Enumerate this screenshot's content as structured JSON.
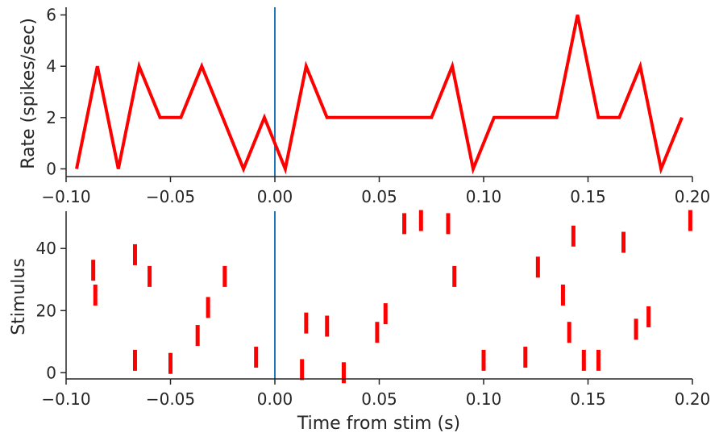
{
  "chart_data": [
    {
      "type": "line",
      "ylabel": "Rate (spikes/sec)",
      "xlim": [
        -0.1,
        0.2
      ],
      "ylim": [
        -0.3,
        6.3
      ],
      "xticks": [
        "−0.10",
        "−0.05",
        "0.00",
        "0.05",
        "0.10",
        "0.15",
        "0.20"
      ],
      "xtick_values": [
        -0.1,
        -0.05,
        0.0,
        0.05,
        0.1,
        0.15,
        0.2
      ],
      "yticks": [
        "0",
        "2",
        "4",
        "6"
      ],
      "ytick_values": [
        0,
        2,
        4,
        6
      ],
      "line_color": "#ff0000",
      "stim_line_color": "#1f77b4",
      "stim_time": 0.0,
      "series": [
        {
          "name": "rate",
          "x": [
            -0.095,
            -0.085,
            -0.075,
            -0.065,
            -0.055,
            -0.045,
            -0.035,
            -0.025,
            -0.015,
            -0.005,
            0.005,
            0.015,
            0.025,
            0.035,
            0.045,
            0.055,
            0.065,
            0.075,
            0.085,
            0.095,
            0.105,
            0.115,
            0.125,
            0.135,
            0.145,
            0.155,
            0.165,
            0.175,
            0.185,
            0.195
          ],
          "y": [
            0,
            4,
            0,
            4,
            2,
            2,
            4,
            2,
            0,
            2,
            0,
            4,
            2,
            2,
            2,
            2,
            2,
            2,
            4,
            0,
            2,
            2,
            2,
            2,
            6,
            2,
            2,
            4,
            0,
            2
          ]
        }
      ]
    },
    {
      "type": "scatter",
      "xlabel": "Time from stim (s)",
      "ylabel": "Stimulus",
      "xlim": [
        -0.1,
        0.2
      ],
      "ylim": [
        -2,
        52
      ],
      "xticks": [
        "−0.10",
        "−0.05",
        "0.00",
        "0.05",
        "0.10",
        "0.15",
        "0.20"
      ],
      "xtick_values": [
        -0.1,
        -0.05,
        0.0,
        0.05,
        0.1,
        0.15,
        0.2
      ],
      "yticks": [
        "0",
        "20",
        "40"
      ],
      "ytick_values": [
        0,
        20,
        40
      ],
      "marker": "|",
      "marker_color": "#ff0000",
      "stim_line_color": "#1f77b4",
      "stim_time": 0.0,
      "series": [
        {
          "name": "spikes",
          "x": [
            -0.087,
            -0.086,
            -0.067,
            -0.067,
            -0.06,
            -0.05,
            -0.037,
            -0.032,
            -0.024,
            -0.009,
            0.013,
            0.015,
            0.025,
            0.033,
            0.049,
            0.053,
            0.062,
            0.07,
            0.083,
            0.086,
            0.1,
            0.12,
            0.126,
            0.138,
            0.141,
            0.143,
            0.148,
            0.155,
            0.167,
            0.173,
            0.179,
            0.199
          ],
          "y": [
            33,
            25,
            38,
            4,
            31,
            3,
            12,
            21,
            31,
            5,
            1,
            16,
            15,
            0,
            13,
            19,
            48,
            49,
            48,
            31,
            4,
            5,
            34,
            25,
            13,
            44,
            4,
            4,
            42,
            14,
            18,
            49
          ]
        }
      ]
    }
  ]
}
